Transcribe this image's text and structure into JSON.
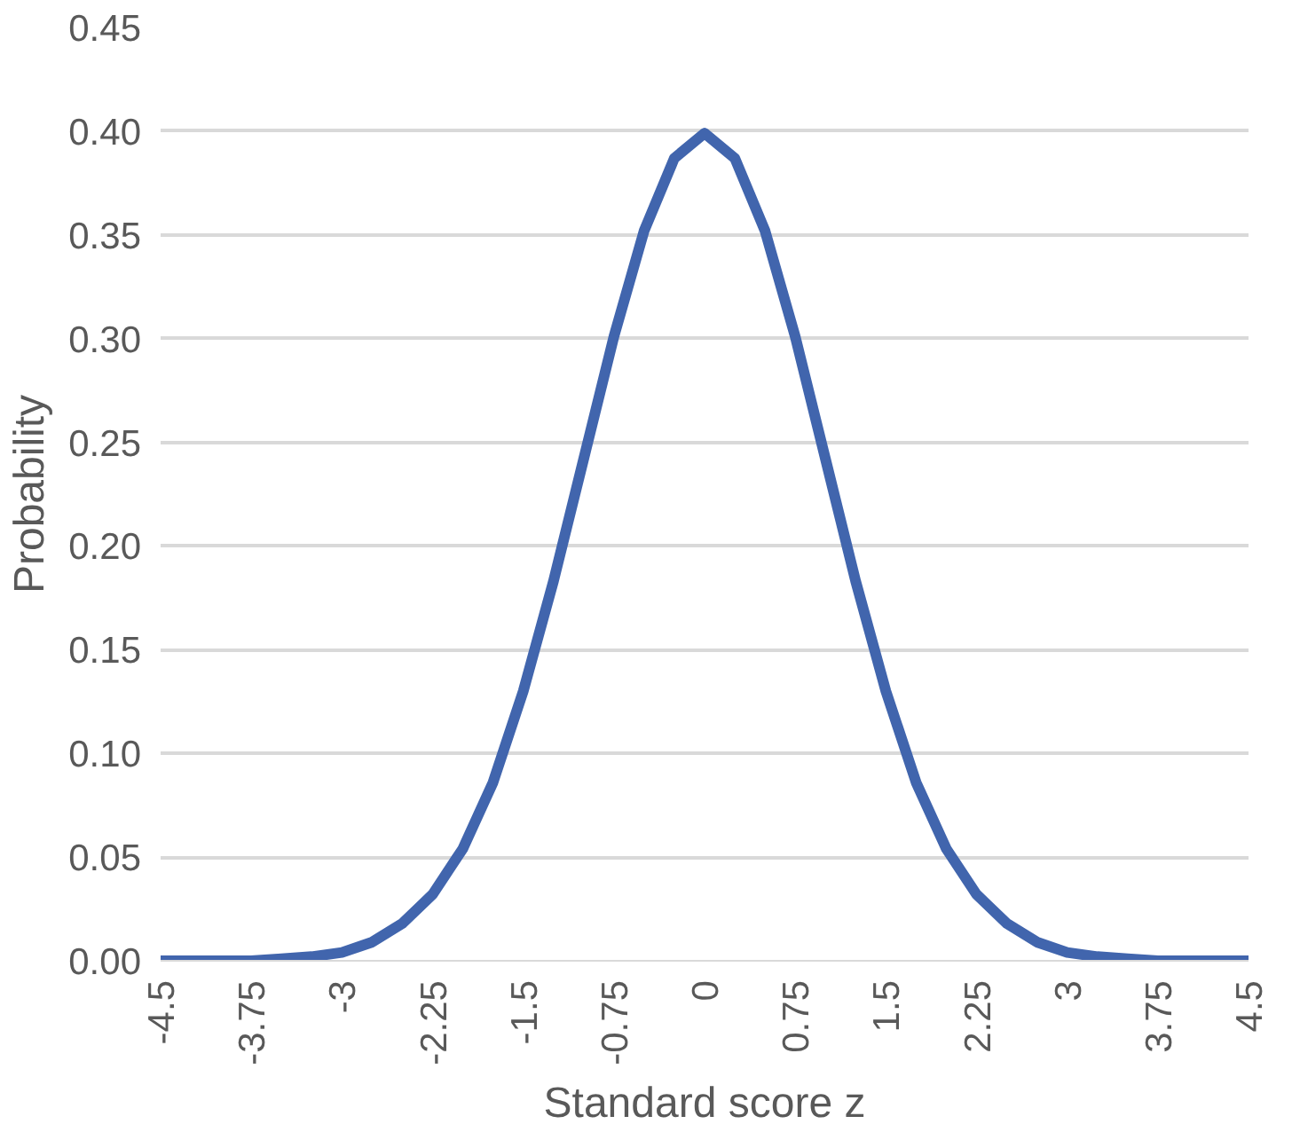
{
  "chart_data": {
    "type": "line",
    "xlabel": "Standard score z",
    "ylabel": "Probability",
    "x": [
      -4.5,
      -4.25,
      -4,
      -3.75,
      -3.5,
      -3.25,
      -3,
      -2.75,
      -2.5,
      -2.25,
      -2,
      -1.75,
      -1.5,
      -1.25,
      -1,
      -0.75,
      -0.5,
      -0.25,
      0,
      0.25,
      0.5,
      0.75,
      1,
      1.25,
      1.5,
      1.75,
      2,
      2.25,
      2.5,
      2.75,
      3,
      3.25,
      3.5,
      3.75,
      4,
      4.25,
      4.5
    ],
    "series": [
      {
        "color": "#4165ad",
        "values": [
          0,
          0,
          0,
          0,
          0.001,
          0.002,
          0.004,
          0.009,
          0.018,
          0.032,
          0.054,
          0.086,
          0.13,
          0.183,
          0.242,
          0.301,
          0.352,
          0.387,
          0.399,
          0.387,
          0.352,
          0.301,
          0.242,
          0.183,
          0.13,
          0.086,
          0.054,
          0.032,
          0.018,
          0.009,
          0.004,
          0.002,
          0.001,
          0,
          0,
          0,
          0
        ]
      }
    ],
    "xlim": [
      -4.5,
      4.5
    ],
    "xticks": [
      {
        "value": -4.5,
        "label": "-4.5"
      },
      {
        "value": -3.75,
        "label": "-3.75"
      },
      {
        "value": -3,
        "label": "-3"
      },
      {
        "value": -2.25,
        "label": "-2.25"
      },
      {
        "value": -1.5,
        "label": "-1.5"
      },
      {
        "value": -0.75,
        "label": "-0.75"
      },
      0,
      0.75,
      1.5,
      2.25,
      3,
      3.75,
      4.5
    ],
    "ylim": [
      0,
      0.45
    ],
    "yticks": [
      {
        "value": 0,
        "label": "0.00"
      },
      {
        "value": 0.05,
        "label": "0.05"
      },
      {
        "value": 0.1,
        "label": "0.10"
      },
      {
        "value": 0.15,
        "label": "0.15"
      },
      {
        "value": 0.2,
        "label": "0.20"
      },
      {
        "value": 0.25,
        "label": "0.25"
      },
      {
        "value": 0.3,
        "label": "0.30"
      },
      {
        "value": 0.35,
        "label": "0.35"
      },
      {
        "value": 0.4,
        "label": "0.40"
      },
      {
        "value": 0.45,
        "label": "0.45"
      }
    ],
    "grid": "y",
    "marker": "none",
    "line_style": "solid"
  }
}
